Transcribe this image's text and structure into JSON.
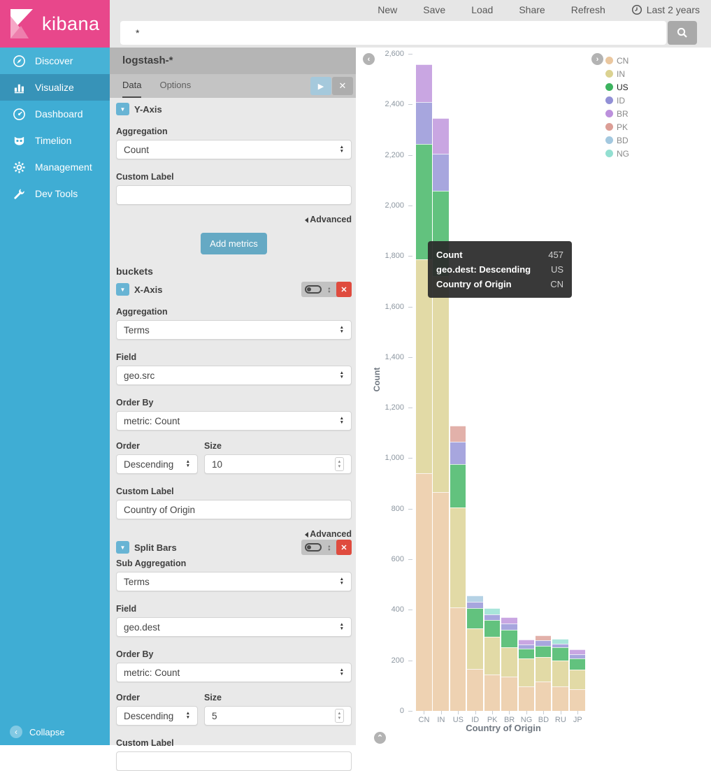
{
  "header": {
    "brand": "kibana",
    "nav": {
      "new": "New",
      "save": "Save",
      "load": "Load",
      "share": "Share",
      "refresh": "Refresh"
    },
    "time_range": "Last 2 years",
    "query": "*"
  },
  "sidebar": {
    "items": [
      {
        "label": "Discover",
        "icon": "compass-icon"
      },
      {
        "label": "Visualize",
        "icon": "bar-chart-icon",
        "active": true
      },
      {
        "label": "Dashboard",
        "icon": "dashboard-icon"
      },
      {
        "label": "Timelion",
        "icon": "timelion-icon"
      },
      {
        "label": "Management",
        "icon": "gear-icon"
      },
      {
        "label": "Dev Tools",
        "icon": "wrench-icon"
      }
    ],
    "collapse": "Collapse"
  },
  "config": {
    "index_pattern": "logstash-*",
    "tabs": {
      "data": "Data",
      "options": "Options"
    },
    "labels": {
      "aggregation": "Aggregation",
      "sub_aggregation": "Sub Aggregation",
      "field": "Field",
      "order_by": "Order By",
      "order": "Order",
      "size": "Size",
      "custom_label": "Custom Label",
      "advanced": "Advanced",
      "buckets": "buckets",
      "metrics_button": "Add metrics"
    },
    "y_axis": {
      "title": "Y-Axis",
      "aggregation": "Count",
      "custom_label": ""
    },
    "x_axis": {
      "title": "X-Axis",
      "aggregation": "Terms",
      "field": "geo.src",
      "order_by": "metric: Count",
      "order": "Descending",
      "size": "10",
      "custom_label": "Country of Origin"
    },
    "split_bars": {
      "title": "Split Bars",
      "sub_aggregation": "Terms",
      "field": "geo.dest",
      "order_by": "metric: Count",
      "order": "Descending",
      "size": "5",
      "custom_label": ""
    }
  },
  "chart_data": {
    "type": "bar",
    "stacked": true,
    "xlabel": "Country of Origin",
    "ylabel": "Count",
    "ylim": [
      0,
      2600
    ],
    "ytick_step": 200,
    "grid": false,
    "legend_position": "right",
    "highlighted_series": "US",
    "categories": [
      "CN",
      "IN",
      "US",
      "ID",
      "PK",
      "BR",
      "NG",
      "BD",
      "RU",
      "JP"
    ],
    "series": [
      {
        "name": "CN",
        "color": "#EAC79F",
        "values": [
          940,
          866,
          409,
          166,
          144,
          136,
          97,
          116,
          97,
          86
        ]
      },
      {
        "name": "IN",
        "color": "#DBD291",
        "values": [
          847,
          854,
          396,
          160,
          149,
          116,
          111,
          96,
          102,
          77
        ]
      },
      {
        "name": "US",
        "color": "#3CB35F",
        "values": [
          457,
          338,
          171,
          81,
          67,
          69,
          38,
          45,
          53,
          45
        ]
      },
      {
        "name": "ID",
        "color": "#9290D6",
        "values": [
          166,
          146,
          89,
          24,
          22,
          25,
          17,
          22,
          14,
          16
        ]
      },
      {
        "name": "BR",
        "color": "#BC90DC",
        "values": [
          149,
          141,
          0,
          0,
          0,
          25,
          19,
          0,
          0,
          19
        ]
      },
      {
        "name": "PK",
        "color": "#DC9E96",
        "values": [
          0,
          0,
          63,
          0,
          0,
          0,
          0,
          20,
          0,
          0
        ]
      },
      {
        "name": "BD",
        "color": "#A3C8DF",
        "values": [
          0,
          0,
          0,
          25,
          0,
          0,
          0,
          0,
          0,
          0
        ]
      },
      {
        "name": "NG",
        "color": "#93DFD1",
        "values": [
          0,
          0,
          0,
          0,
          25,
          0,
          0,
          0,
          19,
          0
        ]
      }
    ],
    "legend": [
      "CN",
      "IN",
      "US",
      "ID",
      "BR",
      "PK",
      "BD",
      "NG"
    ],
    "tooltip": {
      "rows": [
        {
          "label": "Count",
          "value": "457"
        },
        {
          "label": "geo.dest: Descending",
          "value": "US"
        },
        {
          "label": "Country of Origin",
          "value": "CN"
        }
      ]
    }
  }
}
